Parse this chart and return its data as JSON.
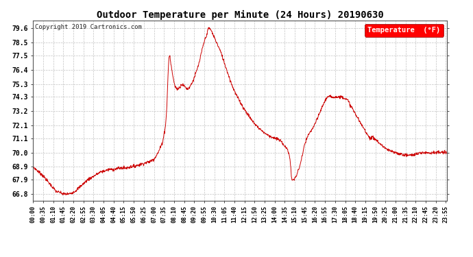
{
  "title": "Outdoor Temperature per Minute (24 Hours) 20190630",
  "copyright_text": "Copyright 2019 Cartronics.com",
  "legend_label": "Temperature  (°F)",
  "line_color": "#cc0000",
  "background_color": "#ffffff",
  "grid_color": "#bbbbbb",
  "yticks": [
    66.8,
    67.9,
    68.9,
    70.0,
    71.1,
    72.1,
    73.2,
    74.3,
    75.3,
    76.4,
    77.5,
    78.5,
    79.6
  ],
  "ylim": [
    66.3,
    80.2
  ],
  "xlim": [
    0,
    1439
  ],
  "xtick_labels": [
    "00:00",
    "00:35",
    "01:10",
    "01:45",
    "02:20",
    "02:55",
    "03:30",
    "04:05",
    "04:40",
    "05:15",
    "05:50",
    "06:25",
    "07:00",
    "07:35",
    "08:10",
    "08:45",
    "09:20",
    "09:55",
    "10:30",
    "11:05",
    "11:40",
    "12:15",
    "12:50",
    "13:25",
    "14:00",
    "14:35",
    "15:10",
    "15:45",
    "16:20",
    "16:55",
    "17:30",
    "18:05",
    "18:40",
    "19:15",
    "19:50",
    "20:25",
    "21:00",
    "21:35",
    "22:10",
    "22:45",
    "23:20",
    "23:55"
  ],
  "keypoints": [
    [
      0,
      68.9
    ],
    [
      10,
      68.7
    ],
    [
      20,
      68.5
    ],
    [
      35,
      68.2
    ],
    [
      50,
      67.8
    ],
    [
      65,
      67.4
    ],
    [
      80,
      67.0
    ],
    [
      95,
      66.9
    ],
    [
      105,
      66.8
    ],
    [
      115,
      66.8
    ],
    [
      125,
      66.8
    ],
    [
      135,
      66.9
    ],
    [
      145,
      67.0
    ],
    [
      160,
      67.3
    ],
    [
      175,
      67.6
    ],
    [
      190,
      67.9
    ],
    [
      205,
      68.1
    ],
    [
      220,
      68.3
    ],
    [
      235,
      68.5
    ],
    [
      250,
      68.6
    ],
    [
      265,
      68.7
    ],
    [
      280,
      68.7
    ],
    [
      300,
      68.8
    ],
    [
      320,
      68.8
    ],
    [
      340,
      68.9
    ],
    [
      360,
      69.0
    ],
    [
      375,
      69.1
    ],
    [
      390,
      69.2
    ],
    [
      405,
      69.3
    ],
    [
      420,
      69.5
    ],
    [
      435,
      70.0
    ],
    [
      450,
      70.8
    ],
    [
      460,
      72.0
    ],
    [
      465,
      73.5
    ],
    [
      468,
      75.5
    ],
    [
      470,
      76.4
    ],
    [
      472,
      77.3
    ],
    [
      474,
      77.5
    ],
    [
      476,
      77.4
    ],
    [
      478,
      77.0
    ],
    [
      482,
      76.4
    ],
    [
      487,
      75.8
    ],
    [
      492,
      75.2
    ],
    [
      497,
      75.0
    ],
    [
      502,
      74.9
    ],
    [
      507,
      75.0
    ],
    [
      512,
      75.1
    ],
    [
      517,
      75.3
    ],
    [
      522,
      75.2
    ],
    [
      527,
      75.1
    ],
    [
      532,
      75.0
    ],
    [
      537,
      74.9
    ],
    [
      542,
      75.0
    ],
    [
      548,
      75.2
    ],
    [
      555,
      75.5
    ],
    [
      562,
      75.9
    ],
    [
      570,
      76.4
    ],
    [
      578,
      77.0
    ],
    [
      586,
      77.8
    ],
    [
      594,
      78.5
    ],
    [
      600,
      78.9
    ],
    [
      605,
      79.2
    ],
    [
      608,
      79.5
    ],
    [
      611,
      79.6
    ],
    [
      614,
      79.6
    ],
    [
      617,
      79.5
    ],
    [
      622,
      79.3
    ],
    [
      630,
      78.9
    ],
    [
      640,
      78.4
    ],
    [
      652,
      77.8
    ],
    [
      664,
      77.0
    ],
    [
      676,
      76.2
    ],
    [
      690,
      75.3
    ],
    [
      705,
      74.5
    ],
    [
      718,
      74.0
    ],
    [
      730,
      73.5
    ],
    [
      745,
      73.0
    ],
    [
      760,
      72.5
    ],
    [
      780,
      72.0
    ],
    [
      800,
      71.6
    ],
    [
      820,
      71.3
    ],
    [
      840,
      71.1
    ],
    [
      855,
      71.0
    ],
    [
      865,
      70.8
    ],
    [
      875,
      70.5
    ],
    [
      882,
      70.3
    ],
    [
      887,
      70.1
    ],
    [
      891,
      69.8
    ],
    [
      894,
      69.3
    ],
    [
      897,
      68.5
    ],
    [
      899,
      67.9
    ],
    [
      901,
      67.9
    ],
    [
      903,
      67.9
    ],
    [
      905,
      67.9
    ],
    [
      907,
      67.9
    ],
    [
      910,
      68.0
    ],
    [
      915,
      68.2
    ],
    [
      920,
      68.5
    ],
    [
      928,
      69.0
    ],
    [
      936,
      69.8
    ],
    [
      943,
      70.5
    ],
    [
      950,
      71.0
    ],
    [
      958,
      71.4
    ],
    [
      965,
      71.6
    ],
    [
      972,
      71.9
    ],
    [
      980,
      72.2
    ],
    [
      988,
      72.6
    ],
    [
      995,
      73.0
    ],
    [
      1003,
      73.4
    ],
    [
      1010,
      73.8
    ],
    [
      1017,
      74.1
    ],
    [
      1023,
      74.3
    ],
    [
      1030,
      74.3
    ],
    [
      1045,
      74.3
    ],
    [
      1060,
      74.3
    ],
    [
      1075,
      74.3
    ],
    [
      1085,
      74.2
    ],
    [
      1095,
      74.0
    ],
    [
      1105,
      73.6
    ],
    [
      1115,
      73.2
    ],
    [
      1128,
      72.7
    ],
    [
      1140,
      72.2
    ],
    [
      1152,
      71.8
    ],
    [
      1160,
      71.5
    ],
    [
      1168,
      71.2
    ],
    [
      1175,
      71.1
    ],
    [
      1180,
      71.2
    ],
    [
      1185,
      71.1
    ],
    [
      1192,
      71.0
    ],
    [
      1200,
      70.8
    ],
    [
      1210,
      70.6
    ],
    [
      1222,
      70.4
    ],
    [
      1232,
      70.2
    ],
    [
      1245,
      70.1
    ],
    [
      1258,
      70.0
    ],
    [
      1275,
      69.9
    ],
    [
      1295,
      69.8
    ],
    [
      1315,
      69.8
    ],
    [
      1335,
      69.9
    ],
    [
      1355,
      70.0
    ],
    [
      1375,
      70.0
    ],
    [
      1400,
      70.0
    ],
    [
      1420,
      70.0
    ],
    [
      1439,
      70.0
    ]
  ]
}
